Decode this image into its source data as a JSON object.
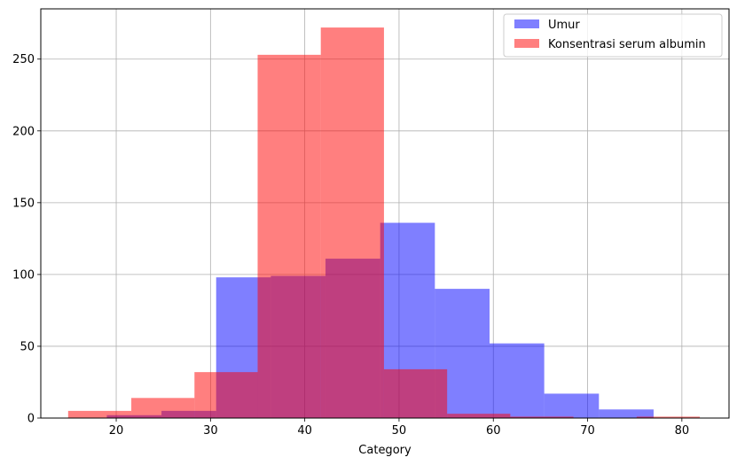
{
  "chart_data": {
    "type": "bar",
    "title": "",
    "xlabel": "Category",
    "ylabel": "",
    "xlim": [
      12,
      85
    ],
    "ylim": [
      0,
      285
    ],
    "grid": true,
    "legend_position": "top-right",
    "x_ticks": [
      {
        "value": 20,
        "label": "20"
      },
      {
        "value": 30,
        "label": "30"
      },
      {
        "value": 40,
        "label": "40"
      },
      {
        "value": 50,
        "label": "50"
      },
      {
        "value": 60,
        "label": "60"
      },
      {
        "value": 70,
        "label": "70"
      },
      {
        "value": 80,
        "label": "80"
      }
    ],
    "y_ticks": [
      {
        "value": 0,
        "label": "0"
      },
      {
        "value": 50,
        "label": "50"
      },
      {
        "value": 100,
        "label": "100"
      },
      {
        "value": 150,
        "label": "150"
      },
      {
        "value": 200,
        "label": "200"
      },
      {
        "value": 250,
        "label": "250"
      }
    ],
    "series": [
      {
        "name": "Umur",
        "color": "#0000ff",
        "alpha": 0.5,
        "bins": [
          {
            "x0": 19.0,
            "x1": 24.8,
            "count": 2
          },
          {
            "x0": 24.8,
            "x1": 30.6,
            "count": 5
          },
          {
            "x0": 30.6,
            "x1": 36.4,
            "count": 98
          },
          {
            "x0": 36.4,
            "x1": 42.2,
            "count": 99
          },
          {
            "x0": 42.2,
            "x1": 48.0,
            "count": 111
          },
          {
            "x0": 48.0,
            "x1": 53.8,
            "count": 136
          },
          {
            "x0": 53.8,
            "x1": 59.6,
            "count": 90
          },
          {
            "x0": 59.6,
            "x1": 65.4,
            "count": 52
          },
          {
            "x0": 65.4,
            "x1": 71.2,
            "count": 17
          },
          {
            "x0": 71.2,
            "x1": 77.0,
            "count": 6
          }
        ]
      },
      {
        "name": "Konsentrasi serum albumin",
        "color": "#ff0000",
        "alpha": 0.5,
        "bins": [
          {
            "x0": 14.9,
            "x1": 21.6,
            "count": 5
          },
          {
            "x0": 21.6,
            "x1": 28.3,
            "count": 14
          },
          {
            "x0": 28.3,
            "x1": 35.0,
            "count": 32
          },
          {
            "x0": 35.0,
            "x1": 41.7,
            "count": 253
          },
          {
            "x0": 41.7,
            "x1": 48.4,
            "count": 272
          },
          {
            "x0": 48.4,
            "x1": 55.1,
            "count": 34
          },
          {
            "x0": 55.1,
            "x1": 61.8,
            "count": 3
          },
          {
            "x0": 61.8,
            "x1": 68.5,
            "count": 1
          },
          {
            "x0": 68.5,
            "x1": 75.2,
            "count": 0
          },
          {
            "x0": 75.2,
            "x1": 81.9,
            "count": 1
          }
        ]
      }
    ]
  }
}
